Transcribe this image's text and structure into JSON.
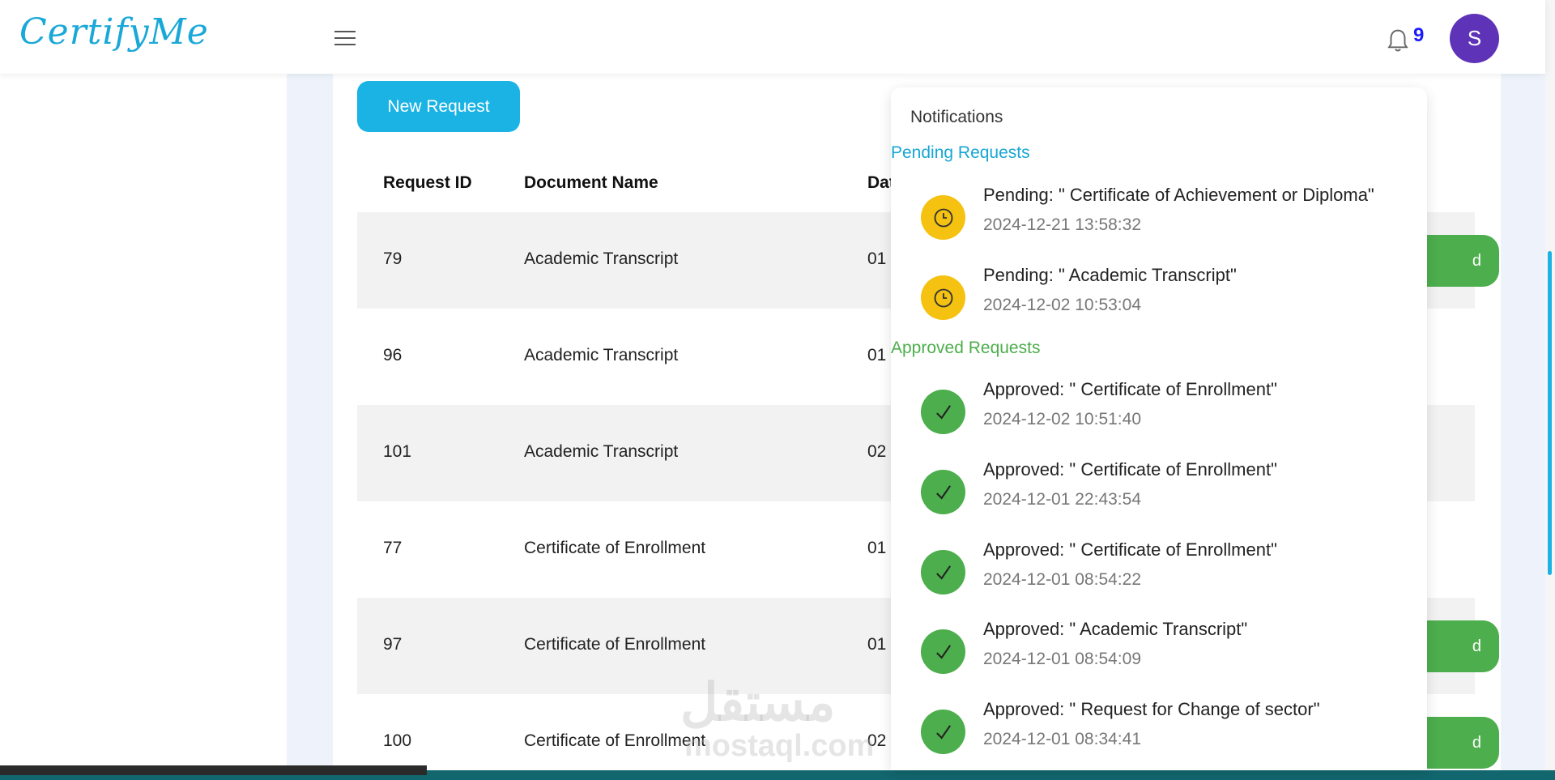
{
  "header": {
    "logo": "CertifyMe",
    "notification_count": "9",
    "avatar_initial": "S"
  },
  "main": {
    "new_request_label": "New Request",
    "columns": [
      "Request ID",
      "Document Name",
      "Dat"
    ],
    "rows": [
      {
        "id": "79",
        "document": "Academic Transcript",
        "date": "01",
        "action": "d"
      },
      {
        "id": "96",
        "document": "Academic Transcript",
        "date": "01",
        "action": ""
      },
      {
        "id": "101",
        "document": "Academic Transcript",
        "date": "02",
        "action": ""
      },
      {
        "id": "77",
        "document": "Certificate of Enrollment",
        "date": "01",
        "action": ""
      },
      {
        "id": "97",
        "document": "Certificate of Enrollment",
        "date": "01",
        "action": "d"
      },
      {
        "id": "100",
        "document": "Certificate of Enrollment",
        "date": "02",
        "action": "d"
      }
    ]
  },
  "notifications": {
    "title": "Notifications",
    "pending_label": "Pending Requests",
    "approved_label": "Approved Requests",
    "pending": [
      {
        "text": "Pending: \" Certificate of Achievement or Diploma\"",
        "time": "2024-12-21 13:58:32"
      },
      {
        "text": "Pending: \" Academic Transcript\"",
        "time": "2024-12-02 10:53:04"
      }
    ],
    "approved": [
      {
        "text": "Approved: \" Certificate of Enrollment\"",
        "time": "2024-12-02 10:51:40"
      },
      {
        "text": "Approved: \" Certificate of Enrollment\"",
        "time": "2024-12-01 22:43:54"
      },
      {
        "text": "Approved: \" Certificate of Enrollment\"",
        "time": "2024-12-01 08:54:22"
      },
      {
        "text": "Approved: \" Academic Transcript\"",
        "time": "2024-12-01 08:54:09"
      },
      {
        "text": "Approved: \" Request for Change of sector\"",
        "time": "2024-12-01 08:34:41"
      }
    ]
  },
  "watermark": {
    "arabic": "مستقل",
    "latin": "mostaql.com"
  },
  "colors": {
    "accent": "#1ab3e4",
    "approved": "#4cae4c",
    "pending": "#f5c211",
    "avatar": "#5e33b8"
  }
}
